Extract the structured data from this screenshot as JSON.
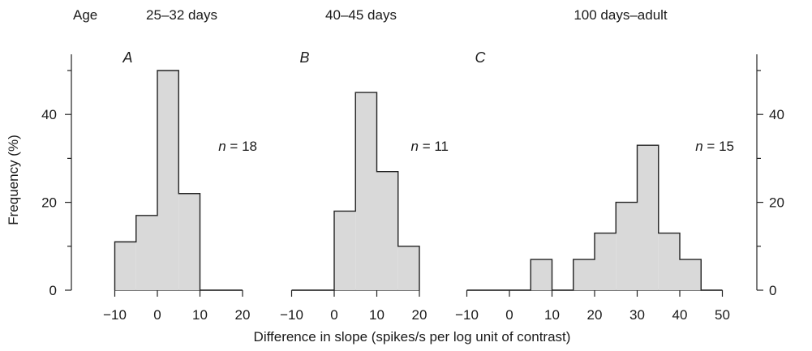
{
  "header": {
    "age_label": "Age",
    "groups": [
      "25–32 days",
      "40–45 days",
      "100 days–adult"
    ]
  },
  "y_axis_label": "Frequency (%)",
  "x_axis_label": "Difference in slope (spikes/s per log unit of contrast)",
  "colors": {
    "bar_fill": "#d9d9d9",
    "outline": "#222222"
  },
  "chart_data": {
    "type": "bar",
    "ylabel": "Frequency (%)",
    "xlabel": "Difference in slope (spikes/s per log unit of contrast)",
    "ylim": [
      0,
      50
    ],
    "y_ticks": [
      0,
      20,
      40
    ],
    "y_tick_labels": [
      "0",
      "20",
      "40"
    ],
    "grid": false,
    "panels": [
      {
        "letter": "A",
        "age": "25–32 days",
        "n_label": "n = 18",
        "xlim": [
          -10,
          20
        ],
        "x_ticks": [
          -10,
          0,
          10,
          20
        ],
        "x_tick_labels": [
          "−10",
          "0",
          "10",
          "20"
        ],
        "bin_width": 5,
        "bins": [
          {
            "start": -10,
            "value": 11
          },
          {
            "start": -5,
            "value": 17
          },
          {
            "start": 0,
            "value": 50
          },
          {
            "start": 5,
            "value": 22
          },
          {
            "start": 10,
            "value": 0
          },
          {
            "start": 15,
            "value": 0
          }
        ]
      },
      {
        "letter": "B",
        "age": "40–45 days",
        "n_label": "n = 11",
        "xlim": [
          -10,
          20
        ],
        "x_ticks": [
          -10,
          0,
          10,
          20
        ],
        "x_tick_labels": [
          "−10",
          "0",
          "10",
          "20"
        ],
        "bin_width": 5,
        "bins": [
          {
            "start": -10,
            "value": 0
          },
          {
            "start": -5,
            "value": 0
          },
          {
            "start": 0,
            "value": 18
          },
          {
            "start": 5,
            "value": 45
          },
          {
            "start": 10,
            "value": 27
          },
          {
            "start": 15,
            "value": 10
          }
        ]
      },
      {
        "letter": "C",
        "age": "100 days–adult",
        "n_label": "n = 15",
        "xlim": [
          -10,
          50
        ],
        "x_ticks": [
          -10,
          0,
          10,
          20,
          30,
          40,
          50
        ],
        "x_tick_labels": [
          "−10",
          "0",
          "10",
          "20",
          "30",
          "40",
          "50"
        ],
        "bin_width": 5,
        "bins": [
          {
            "start": -10,
            "value": 0
          },
          {
            "start": -5,
            "value": 0
          },
          {
            "start": 0,
            "value": 0
          },
          {
            "start": 5,
            "value": 7
          },
          {
            "start": 10,
            "value": 0
          },
          {
            "start": 15,
            "value": 7
          },
          {
            "start": 20,
            "value": 13
          },
          {
            "start": 25,
            "value": 20
          },
          {
            "start": 30,
            "value": 33
          },
          {
            "start": 35,
            "value": 13
          },
          {
            "start": 40,
            "value": 7
          },
          {
            "start": 45,
            "value": 0
          }
        ]
      }
    ]
  }
}
